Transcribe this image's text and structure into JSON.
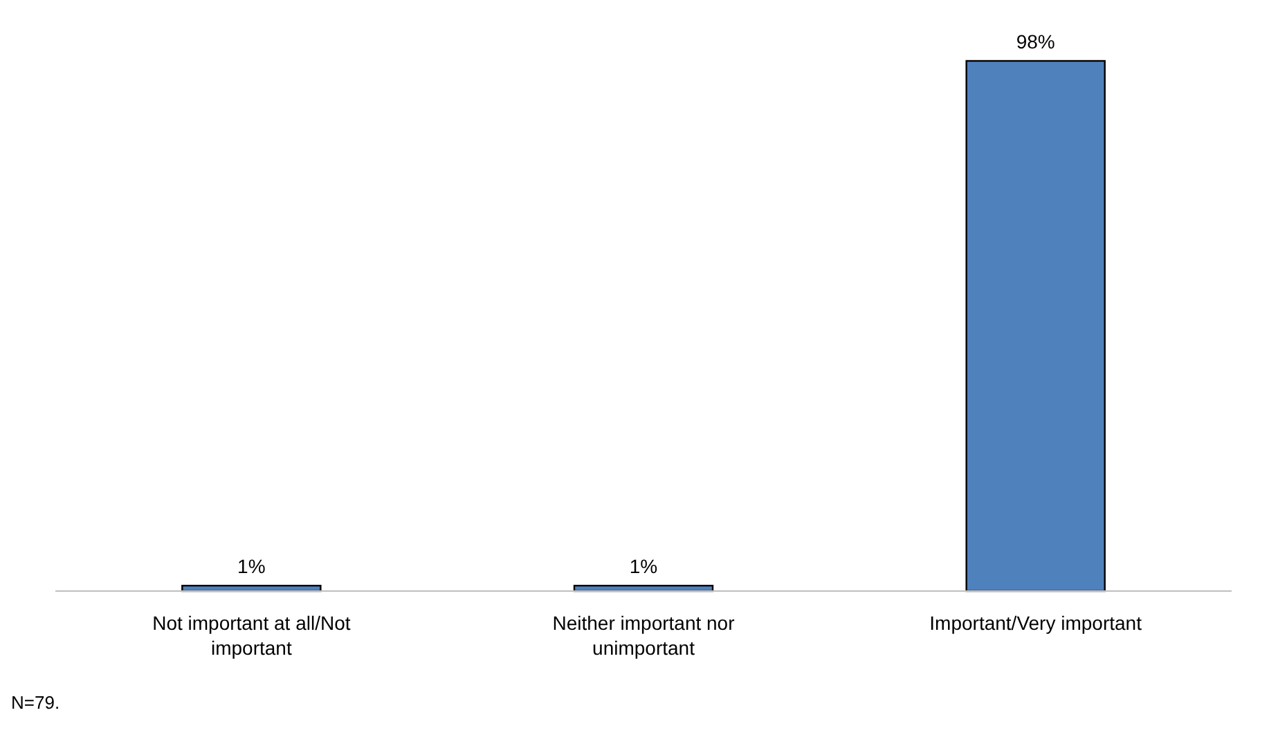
{
  "chart_data": {
    "type": "bar",
    "categories": [
      "Not important at all/Not important",
      "Neither important nor unimportant",
      "Important/Very important"
    ],
    "values": [
      1,
      1,
      98
    ],
    "color": "#4f81bd",
    "value_labels": [
      "1%",
      "1%",
      "98%"
    ],
    "annotations": [
      "N=79."
    ]
  }
}
